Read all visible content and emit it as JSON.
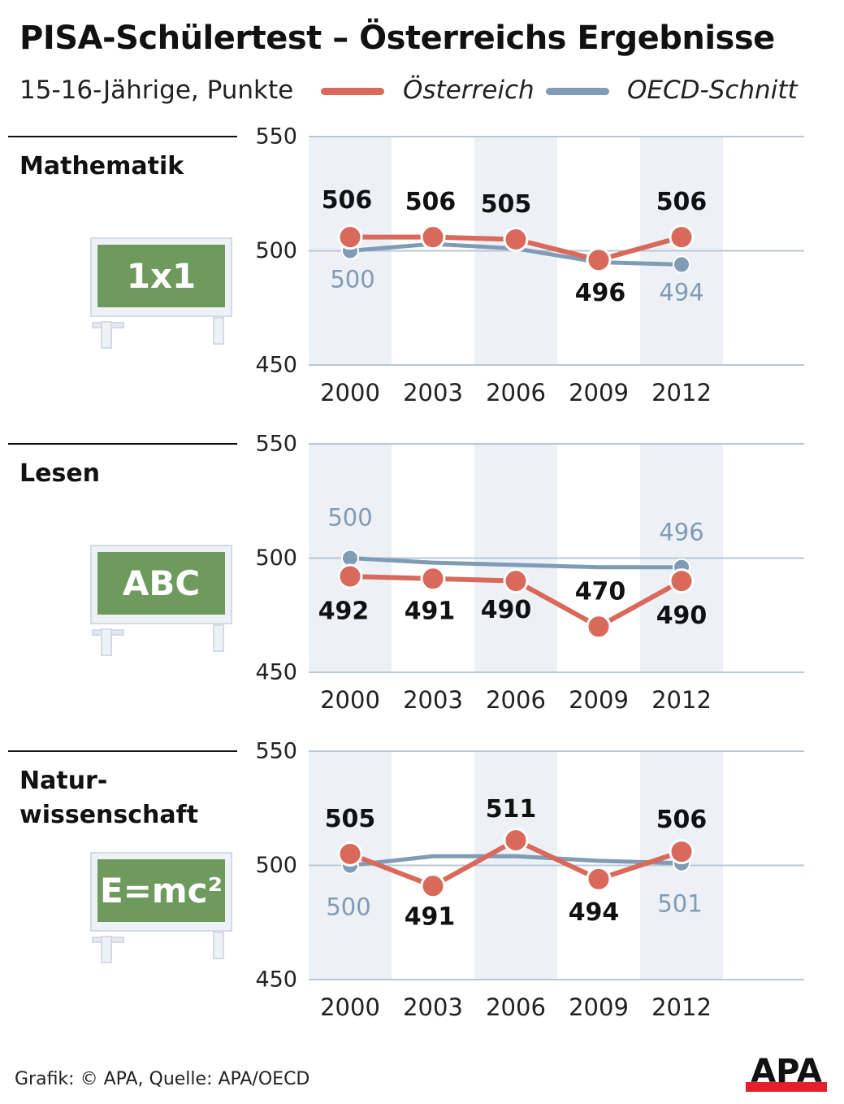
{
  "title": "PISA-Schülertest – Österreichs Ergebnisse",
  "subtitle": "15-16-Jährige, Punkte",
  "legend": [
    {
      "label": "Österreich",
      "color": "#d9695a"
    },
    {
      "label": "OECD-Schnitt",
      "color": "#7f9bb5"
    }
  ],
  "footer": "Grafik: © APA, Quelle: APA/OECD",
  "logo": "APA",
  "boards": [
    "1x1",
    "ABC",
    "E=mc²"
  ],
  "panel_titles": [
    [
      "Mathematik"
    ],
    [
      "Lesen"
    ],
    [
      "Natur-",
      "wissenschaft"
    ]
  ],
  "chart_data": [
    {
      "type": "line",
      "title": "Mathematik",
      "categories": [
        "2000",
        "2003",
        "2006",
        "2009",
        "2012"
      ],
      "ylim": [
        450,
        550
      ],
      "yticks": [
        "450",
        "500",
        "550"
      ],
      "series": [
        {
          "name": "Österreich",
          "values": [
            506,
            506,
            505,
            496,
            506
          ],
          "labels": [
            "506",
            "506",
            "505",
            "496",
            "506"
          ]
        },
        {
          "name": "OECD-Schnitt",
          "values": [
            500,
            503,
            501,
            495,
            494
          ],
          "labels": [
            "500",
            null,
            null,
            null,
            "494"
          ]
        }
      ]
    },
    {
      "type": "line",
      "title": "Lesen",
      "categories": [
        "2000",
        "2003",
        "2006",
        "2009",
        "2012"
      ],
      "ylim": [
        450,
        550
      ],
      "yticks": [
        "450",
        "500",
        "550"
      ],
      "series": [
        {
          "name": "Österreich",
          "values": [
            492,
            491,
            490,
            470,
            490
          ],
          "labels": [
            "492",
            "491",
            "490",
            "470",
            "490"
          ]
        },
        {
          "name": "OECD-Schnitt",
          "values": [
            500,
            498,
            497,
            496,
            496
          ],
          "labels": [
            "500",
            null,
            null,
            null,
            "496"
          ]
        }
      ]
    },
    {
      "type": "line",
      "title": "Naturwissenschaft",
      "categories": [
        "2000",
        "2003",
        "2006",
        "2009",
        "2012"
      ],
      "ylim": [
        450,
        550
      ],
      "yticks": [
        "450",
        "500",
        "550"
      ],
      "series": [
        {
          "name": "Österreich",
          "values": [
            505,
            491,
            511,
            494,
            506
          ],
          "labels": [
            "505",
            "491",
            "511",
            "494",
            "506"
          ]
        },
        {
          "name": "OECD-Schnitt",
          "values": [
            500,
            504,
            504,
            502,
            501
          ],
          "labels": [
            "500",
            null,
            null,
            null,
            "501"
          ]
        }
      ]
    }
  ]
}
